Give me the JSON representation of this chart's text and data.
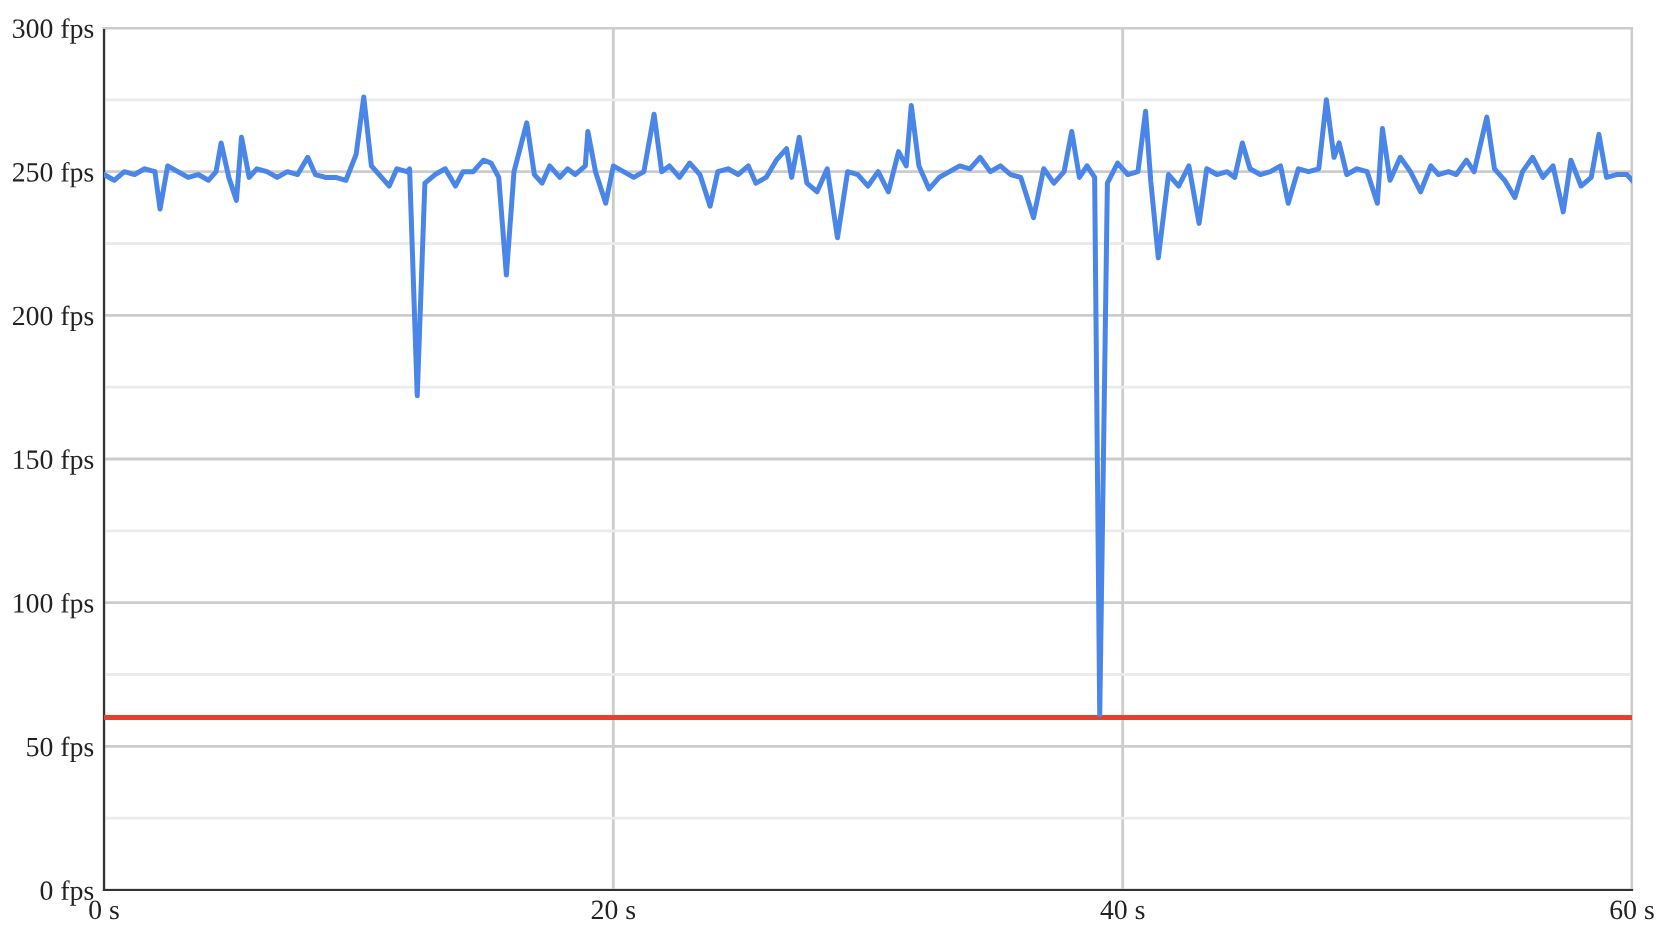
{
  "chart_data": {
    "type": "line",
    "x": [
      0,
      0.4,
      0.8,
      1.2,
      1.6,
      2.0,
      2.2,
      2.5,
      2.9,
      3.3,
      3.7,
      4.1,
      4.4,
      4.6,
      4.9,
      5.2,
      5.4,
      5.7,
      6.0,
      6.4,
      6.8,
      7.2,
      7.6,
      8.0,
      8.3,
      8.7,
      9.1,
      9.5,
      9.9,
      10.2,
      10.5,
      10.9,
      11.2,
      11.5,
      11.9,
      12.0,
      12.3,
      12.6,
      13.0,
      13.4,
      13.8,
      14.1,
      14.5,
      14.9,
      15.2,
      15.5,
      15.8,
      16.1,
      16.6,
      16.9,
      17.2,
      17.5,
      17.9,
      18.2,
      18.5,
      18.9,
      19.0,
      19.3,
      19.7,
      20.0,
      20.4,
      20.8,
      21.2,
      21.6,
      21.9,
      22.2,
      22.6,
      23.0,
      23.4,
      23.8,
      24.1,
      24.5,
      24.9,
      25.3,
      25.6,
      26.0,
      26.4,
      26.8,
      27.0,
      27.3,
      27.6,
      28.0,
      28.4,
      28.8,
      29.2,
      29.6,
      30.0,
      30.4,
      30.8,
      31.2,
      31.5,
      31.7,
      32.0,
      32.4,
      32.8,
      33.2,
      33.6,
      34.0,
      34.4,
      34.8,
      35.2,
      35.6,
      36.0,
      36.5,
      36.9,
      37.3,
      37.7,
      38.0,
      38.3,
      38.6,
      38.9,
      39.1,
      39.4,
      39.8,
      40.2,
      40.6,
      40.9,
      41.1,
      41.4,
      41.8,
      42.2,
      42.6,
      43.0,
      43.3,
      43.7,
      44.1,
      44.4,
      44.7,
      45.0,
      45.4,
      45.8,
      46.2,
      46.5,
      46.9,
      47.3,
      47.7,
      48.0,
      48.3,
      48.5,
      48.8,
      49.2,
      49.6,
      50.0,
      50.2,
      50.5,
      50.9,
      51.3,
      51.7,
      52.1,
      52.4,
      52.8,
      53.1,
      53.5,
      53.8,
      54.3,
      54.6,
      55.0,
      55.4,
      55.7,
      56.1,
      56.5,
      56.9,
      57.3,
      57.6,
      58.0,
      58.4,
      58.7,
      59.0,
      59.4,
      59.8,
      60
    ],
    "series": [
      {
        "color": "#4a86e8",
        "values": [
          249,
          247,
          250,
          249,
          251,
          250,
          237,
          252,
          250,
          248,
          249,
          247,
          250,
          260,
          248,
          240,
          262,
          248,
          251,
          250,
          248,
          250,
          249,
          255,
          249,
          248,
          248,
          247,
          256,
          276,
          252,
          248,
          245,
          251,
          250,
          251,
          172,
          246,
          249,
          251,
          245,
          250,
          250,
          254,
          253,
          248,
          214,
          250,
          267,
          249,
          246,
          252,
          248,
          251,
          249,
          252,
          264,
          250,
          239,
          252,
          250,
          248,
          250,
          270,
          250,
          252,
          248,
          253,
          249,
          238,
          250,
          251,
          249,
          252,
          246,
          248,
          254,
          258,
          248,
          262,
          246,
          243,
          251,
          227,
          250,
          249,
          245,
          250,
          243,
          257,
          252,
          273,
          252,
          244,
          248,
          250,
          252,
          251,
          255,
          250,
          252,
          249,
          248,
          234,
          251,
          246,
          250,
          264,
          248,
          252,
          248,
          61,
          246,
          253,
          249,
          250,
          271,
          247,
          220,
          249,
          245,
          252,
          232,
          251,
          249,
          250,
          248,
          260,
          251,
          249,
          250,
          252,
          239,
          251,
          250,
          251,
          275,
          255,
          260,
          249,
          251,
          250,
          239,
          265,
          247,
          255,
          250,
          243,
          252,
          249,
          250,
          249,
          254,
          250,
          269,
          251,
          247,
          241,
          250,
          255,
          248,
          252,
          236,
          254,
          245,
          248,
          263,
          248,
          249,
          249,
          247
        ]
      }
    ],
    "xlim": [
      0,
      60
    ],
    "xticks": [
      {
        "value": 0,
        "label": "0 s"
      },
      {
        "value": 20,
        "label": "20 s"
      },
      {
        "value": 40,
        "label": "40 s"
      },
      {
        "value": 60,
        "label": "60 s"
      }
    ],
    "ylim": [
      0,
      300
    ],
    "yticks": [
      {
        "value": 0,
        "label": "0 fps"
      },
      {
        "value": 25,
        "label": null
      },
      {
        "value": 50,
        "label": "50 fps"
      },
      {
        "value": 75,
        "label": null
      },
      {
        "value": 100,
        "label": "100 fps"
      },
      {
        "value": 125,
        "label": null
      },
      {
        "value": 150,
        "label": "150 fps"
      },
      {
        "value": 175,
        "label": null
      },
      {
        "value": 200,
        "label": "200 fps"
      },
      {
        "value": 225,
        "label": null
      },
      {
        "value": 250,
        "label": "250 fps"
      },
      {
        "value": 275,
        "label": null
      },
      {
        "value": 300,
        "label": "300 fps"
      }
    ],
    "ref_lines": [
      {
        "axis": "y",
        "value": 60,
        "label": null,
        "color": "#e0442f"
      }
    ],
    "grid": true
  }
}
